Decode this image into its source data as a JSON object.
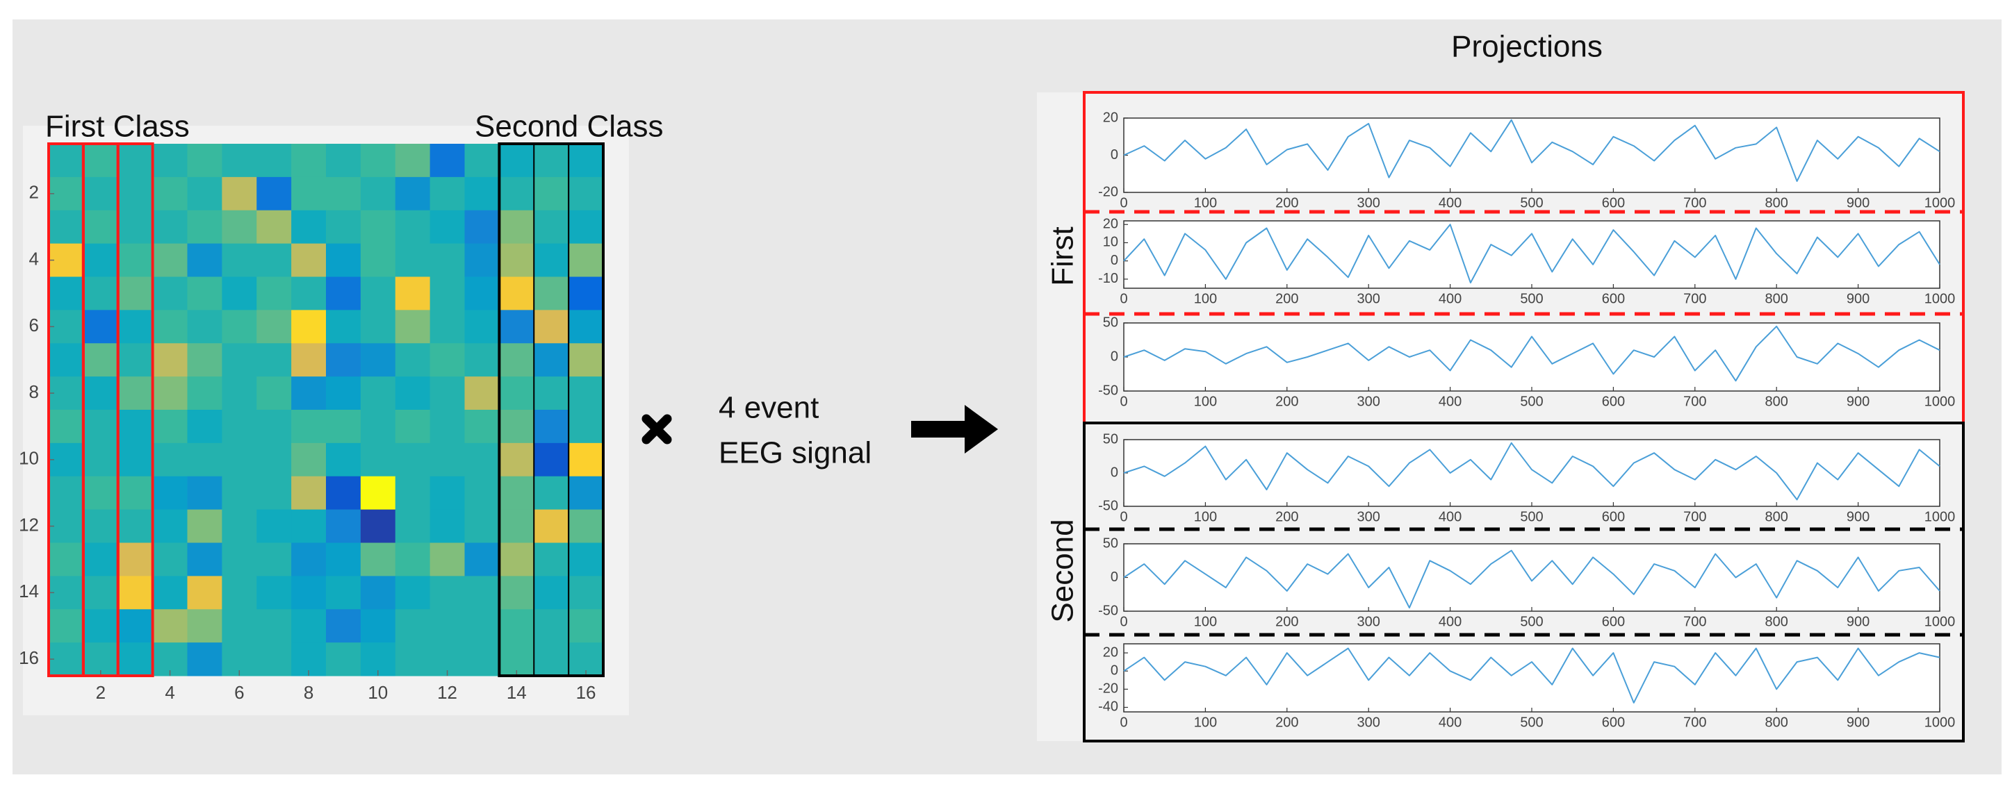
{
  "chart_data": [
    {
      "type": "heatmap",
      "colormap": "parula",
      "zlim": [
        0,
        1
      ],
      "class_labels": [
        "First Class",
        "Second Class"
      ],
      "xlim": [
        0.5,
        16.5
      ],
      "ylim": [
        0.5,
        16.5
      ],
      "xticks": [
        2,
        4,
        6,
        8,
        10,
        12,
        14,
        16
      ],
      "yticks": [
        2,
        4,
        6,
        8,
        10,
        12,
        14,
        16
      ],
      "values": [
        [
          0.45,
          0.5,
          0.45,
          0.45,
          0.5,
          0.45,
          0.45,
          0.5,
          0.45,
          0.5,
          0.55,
          0.2,
          0.45,
          0.4,
          0.45,
          0.4
        ],
        [
          0.5,
          0.45,
          0.45,
          0.5,
          0.45,
          0.7,
          0.2,
          0.5,
          0.5,
          0.45,
          0.3,
          0.45,
          0.4,
          0.45,
          0.5,
          0.45
        ],
        [
          0.45,
          0.5,
          0.45,
          0.45,
          0.5,
          0.55,
          0.65,
          0.4,
          0.45,
          0.5,
          0.45,
          0.4,
          0.25,
          0.6,
          0.45,
          0.4
        ],
        [
          0.85,
          0.4,
          0.5,
          0.55,
          0.3,
          0.45,
          0.45,
          0.7,
          0.35,
          0.5,
          0.45,
          0.45,
          0.3,
          0.65,
          0.4,
          0.6
        ],
        [
          0.4,
          0.45,
          0.55,
          0.45,
          0.5,
          0.4,
          0.5,
          0.45,
          0.2,
          0.45,
          0.85,
          0.45,
          0.35,
          0.85,
          0.55,
          0.15
        ],
        [
          0.45,
          0.2,
          0.4,
          0.5,
          0.45,
          0.5,
          0.55,
          0.9,
          0.4,
          0.45,
          0.6,
          0.45,
          0.4,
          0.25,
          0.75,
          0.35
        ],
        [
          0.4,
          0.55,
          0.45,
          0.7,
          0.55,
          0.45,
          0.45,
          0.75,
          0.25,
          0.3,
          0.45,
          0.5,
          0.45,
          0.55,
          0.3,
          0.65
        ],
        [
          0.45,
          0.4,
          0.55,
          0.6,
          0.5,
          0.45,
          0.5,
          0.3,
          0.35,
          0.45,
          0.4,
          0.45,
          0.7,
          0.5,
          0.45,
          0.45
        ],
        [
          0.5,
          0.45,
          0.4,
          0.5,
          0.4,
          0.45,
          0.45,
          0.5,
          0.5,
          0.45,
          0.5,
          0.45,
          0.5,
          0.55,
          0.25,
          0.45
        ],
        [
          0.4,
          0.45,
          0.4,
          0.45,
          0.45,
          0.45,
          0.45,
          0.55,
          0.4,
          0.45,
          0.45,
          0.45,
          0.45,
          0.7,
          0.1,
          0.88
        ],
        [
          0.45,
          0.5,
          0.5,
          0.35,
          0.3,
          0.45,
          0.45,
          0.7,
          0.1,
          1.0,
          0.45,
          0.4,
          0.45,
          0.55,
          0.45,
          0.3
        ],
        [
          0.45,
          0.45,
          0.45,
          0.4,
          0.6,
          0.45,
          0.4,
          0.4,
          0.25,
          0.05,
          0.45,
          0.4,
          0.45,
          0.55,
          0.8,
          0.55
        ],
        [
          0.5,
          0.4,
          0.75,
          0.45,
          0.3,
          0.45,
          0.45,
          0.3,
          0.35,
          0.55,
          0.5,
          0.6,
          0.3,
          0.65,
          0.45,
          0.4
        ],
        [
          0.45,
          0.45,
          0.85,
          0.4,
          0.8,
          0.45,
          0.4,
          0.35,
          0.4,
          0.3,
          0.4,
          0.45,
          0.45,
          0.55,
          0.4,
          0.45
        ],
        [
          0.5,
          0.4,
          0.35,
          0.65,
          0.6,
          0.45,
          0.45,
          0.4,
          0.25,
          0.35,
          0.45,
          0.45,
          0.45,
          0.5,
          0.45,
          0.5
        ],
        [
          0.45,
          0.45,
          0.4,
          0.45,
          0.3,
          0.45,
          0.45,
          0.4,
          0.45,
          0.4,
          0.45,
          0.45,
          0.45,
          0.5,
          0.45,
          0.45
        ]
      ]
    },
    {
      "type": "line",
      "color": "#4a9fd8",
      "xlim": [
        0,
        1000
      ],
      "ylim": [
        -20,
        20
      ],
      "xticks": [
        0,
        100,
        200,
        300,
        400,
        500,
        600,
        700,
        800,
        900,
        1000
      ],
      "yticks": [
        -20,
        0,
        20
      ],
      "x": [
        0,
        25,
        50,
        75,
        100,
        125,
        150,
        175,
        200,
        225,
        250,
        275,
        300,
        325,
        350,
        375,
        400,
        425,
        450,
        475,
        500,
        525,
        550,
        575,
        600,
        625,
        650,
        675,
        700,
        725,
        750,
        775,
        800,
        825,
        850,
        875,
        900,
        925,
        950,
        975,
        1000
      ],
      "values": [
        0,
        5,
        -3,
        8,
        -2,
        4,
        14,
        -5,
        3,
        6,
        -8,
        10,
        17,
        -12,
        8,
        4,
        -6,
        12,
        2,
        19,
        -4,
        7,
        2,
        -5,
        10,
        5,
        -3,
        8,
        16,
        -2,
        4,
        6,
        15,
        -14,
        8,
        -2,
        10,
        4,
        -6,
        9,
        2
      ]
    },
    {
      "type": "line",
      "color": "#4a9fd8",
      "xlim": [
        0,
        1000
      ],
      "ylim": [
        -15,
        22
      ],
      "xticks": [
        0,
        100,
        200,
        300,
        400,
        500,
        600,
        700,
        800,
        900,
        1000
      ],
      "yticks": [
        -10,
        0,
        10,
        20
      ],
      "x": [
        0,
        25,
        50,
        75,
        100,
        125,
        150,
        175,
        200,
        225,
        250,
        275,
        300,
        325,
        350,
        375,
        400,
        425,
        450,
        475,
        500,
        525,
        550,
        575,
        600,
        625,
        650,
        675,
        700,
        725,
        750,
        775,
        800,
        825,
        850,
        875,
        900,
        925,
        950,
        975,
        1000
      ],
      "values": [
        0,
        12,
        -8,
        15,
        6,
        -10,
        10,
        18,
        -5,
        12,
        2,
        -9,
        14,
        -4,
        11,
        6,
        20,
        -12,
        9,
        3,
        15,
        -6,
        12,
        -2,
        17,
        5,
        -8,
        11,
        2,
        14,
        -10,
        18,
        4,
        -7,
        13,
        2,
        15,
        -3,
        9,
        16,
        -2
      ]
    },
    {
      "type": "line",
      "color": "#4a9fd8",
      "xlim": [
        0,
        1000
      ],
      "ylim": [
        -50,
        50
      ],
      "xticks": [
        0,
        100,
        200,
        300,
        400,
        500,
        600,
        700,
        800,
        900,
        1000
      ],
      "yticks": [
        -50,
        0,
        50
      ],
      "x": [
        0,
        25,
        50,
        75,
        100,
        125,
        150,
        175,
        200,
        225,
        250,
        275,
        300,
        325,
        350,
        375,
        400,
        425,
        450,
        475,
        500,
        525,
        550,
        575,
        600,
        625,
        650,
        675,
        700,
        725,
        750,
        775,
        800,
        825,
        850,
        875,
        900,
        925,
        950,
        975,
        1000
      ],
      "values": [
        0,
        10,
        -5,
        12,
        8,
        -10,
        5,
        15,
        -8,
        0,
        10,
        20,
        -5,
        15,
        0,
        10,
        -20,
        25,
        10,
        -15,
        30,
        -10,
        5,
        20,
        -25,
        10,
        0,
        30,
        -20,
        10,
        -35,
        15,
        45,
        0,
        -10,
        20,
        5,
        -15,
        10,
        25,
        10
      ]
    },
    {
      "type": "line",
      "color": "#4a9fd8",
      "xlim": [
        0,
        1000
      ],
      "ylim": [
        -50,
        50
      ],
      "xticks": [
        0,
        100,
        200,
        300,
        400,
        500,
        600,
        700,
        800,
        900,
        1000
      ],
      "yticks": [
        -50,
        0,
        50
      ],
      "x": [
        0,
        25,
        50,
        75,
        100,
        125,
        150,
        175,
        200,
        225,
        250,
        275,
        300,
        325,
        350,
        375,
        400,
        425,
        450,
        475,
        500,
        525,
        550,
        575,
        600,
        625,
        650,
        675,
        700,
        725,
        750,
        775,
        800,
        825,
        850,
        875,
        900,
        925,
        950,
        975,
        1000
      ],
      "values": [
        0,
        10,
        -5,
        15,
        40,
        -10,
        20,
        -25,
        30,
        5,
        -15,
        25,
        10,
        -20,
        15,
        35,
        0,
        20,
        -10,
        45,
        5,
        -15,
        25,
        10,
        -20,
        15,
        30,
        5,
        -10,
        20,
        5,
        25,
        0,
        -40,
        15,
        -10,
        30,
        5,
        -20,
        35,
        10
      ]
    },
    {
      "type": "line",
      "color": "#4a9fd8",
      "xlim": [
        0,
        1000
      ],
      "ylim": [
        -50,
        50
      ],
      "xticks": [
        0,
        100,
        200,
        300,
        400,
        500,
        600,
        700,
        800,
        900,
        1000
      ],
      "yticks": [
        -50,
        0,
        50
      ],
      "x": [
        0,
        25,
        50,
        75,
        100,
        125,
        150,
        175,
        200,
        225,
        250,
        275,
        300,
        325,
        350,
        375,
        400,
        425,
        450,
        475,
        500,
        525,
        550,
        575,
        600,
        625,
        650,
        675,
        700,
        725,
        750,
        775,
        800,
        825,
        850,
        875,
        900,
        925,
        950,
        975,
        1000
      ],
      "values": [
        0,
        20,
        -10,
        25,
        5,
        -15,
        30,
        10,
        -20,
        20,
        5,
        35,
        -15,
        15,
        -45,
        25,
        10,
        -10,
        20,
        40,
        -5,
        25,
        -10,
        30,
        5,
        -25,
        20,
        10,
        -15,
        35,
        0,
        20,
        -30,
        25,
        10,
        -15,
        30,
        -20,
        10,
        15,
        -20
      ]
    },
    {
      "type": "line",
      "color": "#4a9fd8",
      "xlim": [
        0,
        1000
      ],
      "ylim": [
        -45,
        30
      ],
      "xticks": [
        0,
        100,
        200,
        300,
        400,
        500,
        600,
        700,
        800,
        900,
        1000
      ],
      "yticks": [
        -40,
        -20,
        0,
        20
      ],
      "x": [
        0,
        25,
        50,
        75,
        100,
        125,
        150,
        175,
        200,
        225,
        250,
        275,
        300,
        325,
        350,
        375,
        400,
        425,
        450,
        475,
        500,
        525,
        550,
        575,
        600,
        625,
        650,
        675,
        700,
        725,
        750,
        775,
        800,
        825,
        850,
        875,
        900,
        925,
        950,
        975,
        1000
      ],
      "values": [
        0,
        15,
        -10,
        10,
        5,
        -5,
        15,
        -15,
        20,
        -5,
        10,
        25,
        -10,
        15,
        -5,
        20,
        0,
        -10,
        15,
        -5,
        10,
        -15,
        25,
        -5,
        20,
        -35,
        10,
        5,
        -15,
        20,
        -5,
        25,
        -20,
        10,
        15,
        -10,
        25,
        -5,
        10,
        20,
        15
      ]
    }
  ],
  "operation": {
    "line1": "4 event",
    "line2": "EEG signal"
  },
  "projections": {
    "title": "Projections",
    "groups": [
      "First",
      "Second"
    ]
  }
}
